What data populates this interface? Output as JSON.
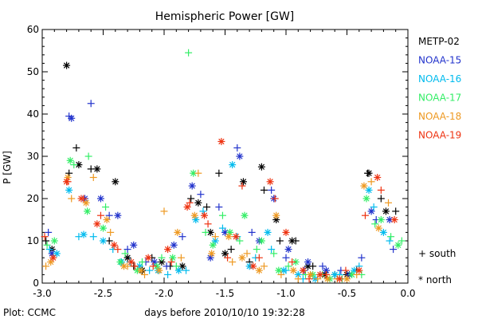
{
  "chart_data": {
    "type": "scatter",
    "title": "Hemispheric Power [GW]",
    "xlabel": "days before 2010/10/10 19:32:28",
    "ylabel": "P [GW]",
    "xlim": [
      -3.0,
      0.0
    ],
    "ylim": [
      0,
      60
    ],
    "xticks": [
      "-3.0",
      "-2.5",
      "-2.0",
      "-1.5",
      "-1.0",
      "-0.5",
      "0.0"
    ],
    "yticks": [
      "0",
      "10",
      "20",
      "30",
      "40",
      "50",
      "60"
    ],
    "grid": false,
    "legend_position": "right",
    "marker_key": [
      {
        "symbol": "+",
        "label": "south"
      },
      {
        "symbol": "*",
        "label": "north"
      }
    ],
    "footer": "Plot: CCMC",
    "series": [
      {
        "name": "METP-02",
        "color": "#000000",
        "south": [
          [
            -2.97,
            10
          ],
          [
            -2.78,
            26
          ],
          [
            -2.72,
            32
          ],
          [
            -2.6,
            27
          ],
          [
            -2.45,
            10
          ],
          [
            -2.25,
            4
          ],
          [
            -2.1,
            6
          ],
          [
            -1.95,
            4
          ],
          [
            -1.78,
            20
          ],
          [
            -1.65,
            18
          ],
          [
            -1.55,
            26
          ],
          [
            -1.45,
            8
          ],
          [
            -1.3,
            5
          ],
          [
            -1.18,
            22
          ],
          [
            -1.05,
            10
          ],
          [
            -0.92,
            10
          ],
          [
            -0.78,
            4
          ],
          [
            -0.6,
            2
          ],
          [
            -0.42,
            3
          ],
          [
            -0.33,
            26
          ],
          [
            -0.22,
            20
          ],
          [
            -0.1,
            17
          ]
        ],
        "north": [
          [
            -2.92,
            8
          ],
          [
            -2.8,
            51.5
          ],
          [
            -2.7,
            28
          ],
          [
            -2.55,
            27
          ],
          [
            -2.4,
            24
          ],
          [
            -2.3,
            6
          ],
          [
            -2.18,
            3
          ],
          [
            -2.02,
            5
          ],
          [
            -1.85,
            4
          ],
          [
            -1.72,
            19
          ],
          [
            -1.62,
            12
          ],
          [
            -1.5,
            7
          ],
          [
            -1.35,
            24
          ],
          [
            -1.2,
            27.5
          ],
          [
            -1.08,
            15
          ],
          [
            -0.95,
            10
          ],
          [
            -0.82,
            4
          ],
          [
            -0.68,
            2
          ],
          [
            -0.5,
            2
          ],
          [
            -0.32,
            26
          ],
          [
            -0.18,
            17
          ]
        ]
      },
      {
        "name": "NOAA-15",
        "color": "#2233cc",
        "south": [
          [
            -2.95,
            12
          ],
          [
            -2.78,
            39.5
          ],
          [
            -2.6,
            42.5
          ],
          [
            -2.45,
            16
          ],
          [
            -2.3,
            8
          ],
          [
            -2.15,
            5
          ],
          [
            -1.98,
            4
          ],
          [
            -1.85,
            11
          ],
          [
            -1.7,
            21
          ],
          [
            -1.55,
            18
          ],
          [
            -1.4,
            32
          ],
          [
            -1.28,
            12
          ],
          [
            -1.12,
            22
          ],
          [
            -1.0,
            6
          ],
          [
            -0.85,
            3
          ],
          [
            -0.7,
            4
          ],
          [
            -0.55,
            3
          ],
          [
            -0.38,
            6
          ],
          [
            -0.26,
            15
          ],
          [
            -0.12,
            8
          ]
        ],
        "north": [
          [
            -2.92,
            7
          ],
          [
            -2.76,
            39
          ],
          [
            -2.65,
            20
          ],
          [
            -2.52,
            20
          ],
          [
            -2.38,
            16
          ],
          [
            -2.25,
            9
          ],
          [
            -2.08,
            5
          ],
          [
            -1.92,
            9
          ],
          [
            -1.77,
            23
          ],
          [
            -1.62,
            6
          ],
          [
            -1.5,
            12
          ],
          [
            -1.38,
            30
          ],
          [
            -1.22,
            10
          ],
          [
            -1.1,
            20
          ],
          [
            -0.98,
            8
          ],
          [
            -0.82,
            5
          ],
          [
            -0.67,
            3
          ],
          [
            -0.48,
            2
          ],
          [
            -0.3,
            17
          ],
          [
            -0.15,
            15
          ]
        ]
      },
      {
        "name": "NOAA-16",
        "color": "#00bbee",
        "south": [
          [
            -2.94,
            8
          ],
          [
            -2.7,
            11
          ],
          [
            -2.58,
            11
          ],
          [
            -2.42,
            8
          ],
          [
            -2.28,
            5
          ],
          [
            -2.12,
            3
          ],
          [
            -1.97,
            2
          ],
          [
            -1.82,
            3
          ],
          [
            -1.68,
            17
          ],
          [
            -1.52,
            13
          ],
          [
            -1.4,
            11
          ],
          [
            -1.25,
            6
          ],
          [
            -1.12,
            8
          ],
          [
            -1.0,
            3
          ],
          [
            -0.86,
            1
          ],
          [
            -0.72,
            2
          ],
          [
            -0.56,
            2
          ],
          [
            -0.4,
            4
          ],
          [
            -0.28,
            18
          ],
          [
            -0.15,
            10
          ]
        ],
        "north": [
          [
            -2.88,
            7
          ],
          [
            -2.78,
            22
          ],
          [
            -2.66,
            11.5
          ],
          [
            -2.5,
            10
          ],
          [
            -2.35,
            5
          ],
          [
            -2.2,
            4
          ],
          [
            -2.05,
            3
          ],
          [
            -1.88,
            3
          ],
          [
            -1.74,
            15
          ],
          [
            -1.58,
            10
          ],
          [
            -1.44,
            28
          ],
          [
            -1.3,
            4
          ],
          [
            -1.15,
            12
          ],
          [
            -1.02,
            3
          ],
          [
            -0.9,
            2
          ],
          [
            -0.76,
            1
          ],
          [
            -0.6,
            2
          ],
          [
            -0.44,
            3
          ],
          [
            -0.32,
            22
          ],
          [
            -0.2,
            12
          ]
        ]
      },
      {
        "name": "NOAA-17",
        "color": "#33ee66",
        "south": [
          [
            -2.96,
            9
          ],
          [
            -2.74,
            28
          ],
          [
            -2.62,
            30
          ],
          [
            -2.48,
            18
          ],
          [
            -2.32,
            7
          ],
          [
            -2.18,
            5
          ],
          [
            -2.02,
            6
          ],
          [
            -1.9,
            4
          ],
          [
            -1.8,
            54.5
          ],
          [
            -1.66,
            12
          ],
          [
            -1.52,
            16
          ],
          [
            -1.38,
            10
          ],
          [
            -1.24,
            8
          ],
          [
            -1.1,
            7
          ],
          [
            -0.98,
            4
          ],
          [
            -0.84,
            2
          ],
          [
            -0.7,
            2
          ],
          [
            -0.54,
            1
          ],
          [
            -0.38,
            2
          ],
          [
            -0.27,
            14
          ],
          [
            -0.14,
            11
          ],
          [
            -0.05,
            10
          ]
        ],
        "north": [
          [
            -2.9,
            10
          ],
          [
            -2.77,
            29
          ],
          [
            -2.63,
            17
          ],
          [
            -2.5,
            13
          ],
          [
            -2.36,
            5
          ],
          [
            -2.22,
            3
          ],
          [
            -2.06,
            4
          ],
          [
            -1.93,
            6
          ],
          [
            -1.76,
            26
          ],
          [
            -1.6,
            9
          ],
          [
            -1.46,
            12
          ],
          [
            -1.34,
            16
          ],
          [
            -1.2,
            10
          ],
          [
            -1.06,
            3
          ],
          [
            -0.92,
            5
          ],
          [
            -0.78,
            2
          ],
          [
            -0.64,
            1
          ],
          [
            -0.46,
            2
          ],
          [
            -0.34,
            20
          ],
          [
            -0.22,
            15
          ],
          [
            -0.08,
            9
          ]
        ]
      },
      {
        "name": "NOAA-18",
        "color": "#ee9922",
        "south": [
          [
            -2.97,
            4
          ],
          [
            -2.76,
            20
          ],
          [
            -2.58,
            25
          ],
          [
            -2.44,
            12
          ],
          [
            -2.3,
            4
          ],
          [
            -2.16,
            2
          ],
          [
            -2.0,
            17
          ],
          [
            -1.86,
            6
          ],
          [
            -1.72,
            26
          ],
          [
            -1.58,
            11
          ],
          [
            -1.44,
            5
          ],
          [
            -1.32,
            7
          ],
          [
            -1.18,
            4
          ],
          [
            -1.04,
            2
          ],
          [
            -0.9,
            1
          ],
          [
            -0.74,
            1
          ],
          [
            -0.58,
            1
          ],
          [
            -0.42,
            2
          ],
          [
            -0.3,
            24
          ],
          [
            -0.16,
            19
          ]
        ],
        "north": [
          [
            -2.93,
            5
          ],
          [
            -2.79,
            25
          ],
          [
            -2.64,
            19
          ],
          [
            -2.47,
            15
          ],
          [
            -2.33,
            4
          ],
          [
            -2.19,
            3
          ],
          [
            -2.04,
            3
          ],
          [
            -1.89,
            12
          ],
          [
            -1.75,
            16
          ],
          [
            -1.61,
            7
          ],
          [
            -1.47,
            11
          ],
          [
            -1.36,
            6
          ],
          [
            -1.22,
            3
          ],
          [
            -1.08,
            16
          ],
          [
            -0.94,
            3
          ],
          [
            -0.8,
            2
          ],
          [
            -0.66,
            1
          ],
          [
            -0.5,
            1
          ],
          [
            -0.36,
            23
          ],
          [
            -0.24,
            13
          ]
        ]
      },
      {
        "name": "NOAA-19",
        "color": "#ee3311",
        "south": [
          [
            -2.98,
            11
          ],
          [
            -2.79,
            24
          ],
          [
            -2.66,
            20
          ],
          [
            -2.52,
            16
          ],
          [
            -2.38,
            8
          ],
          [
            -2.24,
            4
          ],
          [
            -2.09,
            4
          ],
          [
            -1.94,
            5
          ],
          [
            -1.79,
            19
          ],
          [
            -1.64,
            14
          ],
          [
            -1.48,
            6
          ],
          [
            -1.36,
            23
          ],
          [
            -1.22,
            6
          ],
          [
            -1.09,
            20
          ],
          [
            -0.95,
            5
          ],
          [
            -0.81,
            1
          ],
          [
            -0.67,
            2
          ],
          [
            -0.51,
            3
          ],
          [
            -0.35,
            16
          ],
          [
            -0.22,
            22
          ]
        ],
        "north": [
          [
            -2.91,
            6
          ],
          [
            -2.8,
            24
          ],
          [
            -2.68,
            20
          ],
          [
            -2.55,
            14
          ],
          [
            -2.41,
            9
          ],
          [
            -2.27,
            5
          ],
          [
            -2.13,
            6
          ],
          [
            -1.97,
            8
          ],
          [
            -1.81,
            18
          ],
          [
            -1.67,
            16
          ],
          [
            -1.53,
            33.5
          ],
          [
            -1.41,
            11
          ],
          [
            -1.27,
            4
          ],
          [
            -1.13,
            24
          ],
          [
            -1.0,
            12
          ],
          [
            -0.86,
            3
          ],
          [
            -0.72,
            2
          ],
          [
            -0.56,
            1
          ],
          [
            -0.4,
            3
          ],
          [
            -0.25,
            25
          ],
          [
            -0.11,
            15
          ]
        ]
      }
    ]
  }
}
